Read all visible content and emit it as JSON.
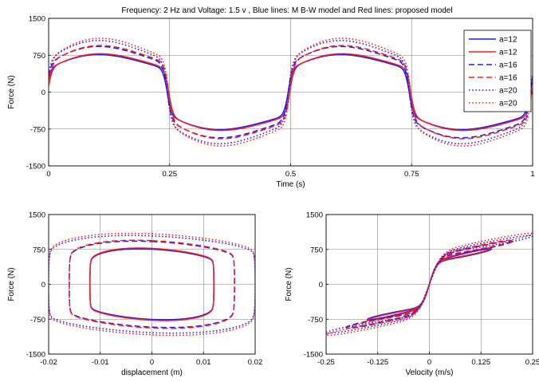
{
  "figure_title": "Frequency: 2 Hz and Voltage: 1.5 v , Blue lines: M B-W model and Red lines: proposed model",
  "colors": {
    "blue": "#1a1aff",
    "red": "#ff1a1a",
    "grid": "#808080",
    "axis": "#000000"
  },
  "chart_data": [
    {
      "type": "line",
      "title": "Frequency: 2 Hz and Voltage: 1.5 v , Blue lines: M B-W model and Red lines: proposed model",
      "xlabel": "Time (s)",
      "ylabel": "Force (N)",
      "xlim": [
        0,
        1
      ],
      "ylim": [
        -1500,
        1500
      ],
      "xticks": [
        0,
        0.25,
        0.5,
        0.75,
        1
      ],
      "xtick_labels": [
        "0",
        "0.25",
        "0.5",
        "0.75",
        "1"
      ],
      "yticks": [
        -1500,
        -750,
        0,
        750,
        1500
      ],
      "ytick_labels": [
        "-1500",
        "-750",
        "0",
        "750",
        "1500"
      ],
      "grid": true,
      "legend_position": "top-right",
      "series": [
        {
          "name": "a=12",
          "color": "blue",
          "style": "solid",
          "amplitude": 820,
          "offset": 0
        },
        {
          "name": "a=12",
          "color": "red",
          "style": "solid",
          "amplitude": 840,
          "offset": 0.003
        },
        {
          "name": "a=16",
          "color": "blue",
          "style": "dashed",
          "amplitude": 1000,
          "offset": 0
        },
        {
          "name": "a=16",
          "color": "red",
          "style": "dashed",
          "amplitude": 1020,
          "offset": 0.003
        },
        {
          "name": "a=20",
          "color": "blue",
          "style": "dotted",
          "amplitude": 1130,
          "offset": 0
        },
        {
          "name": "a=20",
          "color": "red",
          "style": "dotted",
          "amplitude": 1180,
          "offset": 0.003
        }
      ]
    },
    {
      "type": "line",
      "title": "",
      "xlabel": "displacement (m)",
      "ylabel": "Force (N)",
      "xlim": [
        -0.02,
        0.02
      ],
      "ylim": [
        -1500,
        1500
      ],
      "xticks": [
        -0.02,
        -0.01,
        0,
        0.01,
        0.02
      ],
      "xtick_labels": [
        "-0.02",
        "-0.01",
        "0",
        "0.01",
        "0.02"
      ],
      "yticks": [
        -1500,
        -750,
        0,
        750,
        1500
      ],
      "ytick_labels": [
        "-1500",
        "-750",
        "0",
        "750",
        "1500"
      ],
      "grid": true,
      "series": [
        {
          "color": "blue",
          "style": "solid",
          "x_amplitude": 0.012,
          "force_amplitude": 820
        },
        {
          "color": "red",
          "style": "solid",
          "x_amplitude": 0.012,
          "force_amplitude": 840
        },
        {
          "color": "blue",
          "style": "dashed",
          "x_amplitude": 0.016,
          "force_amplitude": 1000
        },
        {
          "color": "red",
          "style": "dashed",
          "x_amplitude": 0.016,
          "force_amplitude": 1020
        },
        {
          "color": "blue",
          "style": "dotted",
          "x_amplitude": 0.02,
          "force_amplitude": 1130
        },
        {
          "color": "red",
          "style": "dotted",
          "x_amplitude": 0.02,
          "force_amplitude": 1180
        }
      ]
    },
    {
      "type": "line",
      "title": "",
      "xlabel": "Velocity (m/s)",
      "ylabel": "Force (N)",
      "xlim": [
        -0.25,
        0.25
      ],
      "ylim": [
        -1500,
        1500
      ],
      "xticks": [
        -0.25,
        -0.125,
        0,
        0.125,
        0.25
      ],
      "xtick_labels": [
        "-0.25",
        "-0.125",
        "0",
        "0.125",
        "0.25"
      ],
      "yticks": [
        -1500,
        -750,
        0,
        750,
        1500
      ],
      "ytick_labels": [
        "-1500",
        "-750",
        "0",
        "750",
        "1500"
      ],
      "grid": true,
      "series": [
        {
          "color": "blue",
          "style": "solid",
          "v_amplitude": 0.15,
          "force_amplitude": 820
        },
        {
          "color": "red",
          "style": "solid",
          "v_amplitude": 0.15,
          "force_amplitude": 840
        },
        {
          "color": "blue",
          "style": "dashed",
          "v_amplitude": 0.2,
          "force_amplitude": 1000
        },
        {
          "color": "red",
          "style": "dashed",
          "v_amplitude": 0.2,
          "force_amplitude": 1020
        },
        {
          "color": "blue",
          "style": "dotted",
          "v_amplitude": 0.25,
          "force_amplitude": 1130
        },
        {
          "color": "red",
          "style": "dotted",
          "v_amplitude": 0.25,
          "force_amplitude": 1180
        }
      ]
    }
  ]
}
